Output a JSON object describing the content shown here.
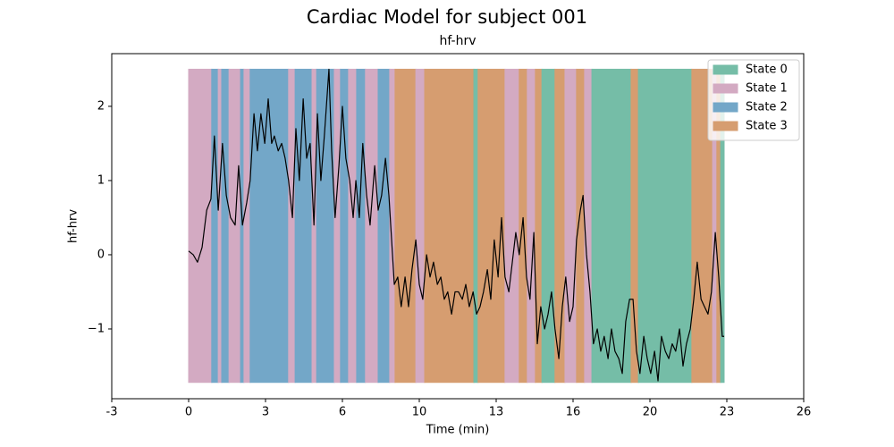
{
  "chart_data": {
    "type": "line",
    "title": "Cardiac Model for subject 001",
    "subtitle": "hf-hrv",
    "x_label": "Time (min)",
    "y_label": "hf-hrv",
    "xlim": [
      -200,
      1600
    ],
    "xticks": [
      {
        "value": -200,
        "label": "-3"
      },
      {
        "value": 0,
        "label": "0"
      },
      {
        "value": 200,
        "label": "3"
      },
      {
        "value": 400,
        "label": "6"
      },
      {
        "value": 600,
        "label": "10"
      },
      {
        "value": 800,
        "label": "13"
      },
      {
        "value": 1000,
        "label": "16"
      },
      {
        "value": 1200,
        "label": "20"
      },
      {
        "value": 1400,
        "label": "23"
      },
      {
        "value": 1600,
        "label": "26"
      }
    ],
    "ylim": [
      -1.94,
      2.71
    ],
    "yticks": [
      {
        "value": -1,
        "label": "−1"
      },
      0,
      1,
      2
    ],
    "legend_position": "upper right",
    "states": [
      {
        "name": "State 0",
        "color": "#7fcdb6"
      },
      {
        "name": "State 1",
        "color": "#e5b9d3"
      },
      {
        "name": "State 2",
        "color": "#7db6d9"
      },
      {
        "name": "State 3",
        "color": "#e9ab7a"
      }
    ],
    "state_band": [
      -1.72,
      2.5
    ],
    "segments": {
      "start": [
        0,
        60,
        77,
        86,
        105,
        135,
        144,
        160,
        260,
        277,
        321,
        333,
        379,
        395,
        416,
        437,
        460,
        493,
        523,
        537,
        591,
        614,
        742,
        753,
        823,
        860,
        881,
        902,
        919,
        953,
        979,
        1009,
        1030,
        1049,
        1151,
        1170,
        1309,
        1363,
        1374,
        1384
      ],
      "end": [
        60,
        77,
        86,
        105,
        135,
        144,
        160,
        260,
        277,
        321,
        333,
        379,
        395,
        416,
        437,
        460,
        493,
        523,
        537,
        591,
        614,
        742,
        753,
        823,
        860,
        881,
        902,
        919,
        953,
        979,
        1009,
        1030,
        1049,
        1151,
        1170,
        1309,
        1363,
        1374,
        1384,
        1393
      ],
      "state": [
        1,
        2,
        1,
        2,
        1,
        2,
        1,
        2,
        1,
        2,
        1,
        2,
        1,
        2,
        1,
        2,
        1,
        2,
        1,
        3,
        1,
        3,
        0,
        3,
        1,
        3,
        1,
        3,
        0,
        3,
        1,
        3,
        1,
        0,
        3,
        0,
        3,
        1,
        3,
        0
      ]
    },
    "line_color": "#000000",
    "x": [
      0,
      12,
      23,
      35,
      47,
      58,
      67,
      77,
      88,
      98,
      109,
      121,
      130,
      140,
      151,
      160,
      170,
      179,
      188,
      198,
      207,
      216,
      223,
      233,
      242,
      251,
      260,
      270,
      279,
      288,
      298,
      307,
      316,
      326,
      335,
      344,
      353,
      365,
      372,
      381,
      391,
      400,
      409,
      419,
      428,
      435,
      444,
      453,
      463,
      472,
      484,
      493,
      502,
      512,
      521,
      528,
      535,
      544,
      553,
      563,
      572,
      581,
      591,
      600,
      609,
      619,
      628,
      637,
      647,
      656,
      665,
      674,
      684,
      693,
      702,
      712,
      721,
      730,
      740,
      749,
      758,
      767,
      777,
      786,
      795,
      805,
      814,
      823,
      833,
      842,
      851,
      860,
      870,
      879,
      888,
      898,
      907,
      916,
      926,
      935,
      944,
      953,
      963,
      972,
      981,
      991,
      1000,
      1009,
      1019,
      1026,
      1035,
      1044,
      1053,
      1063,
      1072,
      1081,
      1091,
      1100,
      1109,
      1119,
      1128,
      1137,
      1147,
      1156,
      1165,
      1174,
      1184,
      1193,
      1202,
      1212,
      1221,
      1230,
      1240,
      1249,
      1258,
      1267,
      1277,
      1286,
      1295,
      1305,
      1314,
      1323,
      1333,
      1342,
      1351,
      1360,
      1370,
      1379,
      1388,
      1393
    ],
    "values": [
      0.05,
      0.0,
      -0.1,
      0.1,
      0.6,
      0.75,
      1.6,
      0.6,
      1.5,
      0.8,
      0.5,
      0.4,
      1.2,
      0.4,
      0.7,
      1.0,
      1.9,
      1.4,
      1.9,
      1.5,
      2.1,
      1.5,
      1.6,
      1.4,
      1.5,
      1.3,
      1.0,
      0.5,
      1.7,
      1.0,
      2.1,
      1.3,
      1.5,
      0.4,
      1.9,
      1.0,
      1.6,
      2.5,
      1.4,
      0.5,
      1.2,
      2.0,
      1.3,
      1.0,
      0.5,
      1.0,
      0.5,
      1.5,
      0.8,
      0.4,
      1.2,
      0.6,
      0.8,
      1.3,
      0.8,
      0.2,
      -0.4,
      -0.3,
      -0.7,
      -0.3,
      -0.7,
      -0.2,
      0.2,
      -0.4,
      -0.6,
      0.0,
      -0.3,
      -0.1,
      -0.4,
      -0.3,
      -0.6,
      -0.5,
      -0.8,
      -0.5,
      -0.5,
      -0.6,
      -0.4,
      -0.7,
      -0.5,
      -0.8,
      -0.7,
      -0.5,
      -0.2,
      -0.6,
      0.2,
      -0.3,
      0.5,
      -0.3,
      -0.5,
      -0.1,
      0.3,
      0.0,
      0.5,
      -0.3,
      -0.6,
      0.3,
      -1.2,
      -0.7,
      -1.0,
      -0.8,
      -0.5,
      -1.0,
      -1.4,
      -0.7,
      -0.3,
      -0.9,
      -0.7,
      0.2,
      0.6,
      0.8,
      0.0,
      -0.5,
      -1.2,
      -1.0,
      -1.3,
      -1.1,
      -1.4,
      -1.0,
      -1.3,
      -1.4,
      -1.6,
      -0.9,
      -0.6,
      -0.6,
      -1.3,
      -1.6,
      -1.1,
      -1.4,
      -1.6,
      -1.3,
      -1.7,
      -1.1,
      -1.3,
      -1.4,
      -1.2,
      -1.3,
      -1.0,
      -1.5,
      -1.2,
      -1.0,
      -0.6,
      -0.1,
      -0.6,
      -0.7,
      -0.8,
      -0.5,
      0.3,
      -0.3,
      -1.1,
      -1.1
    ]
  }
}
